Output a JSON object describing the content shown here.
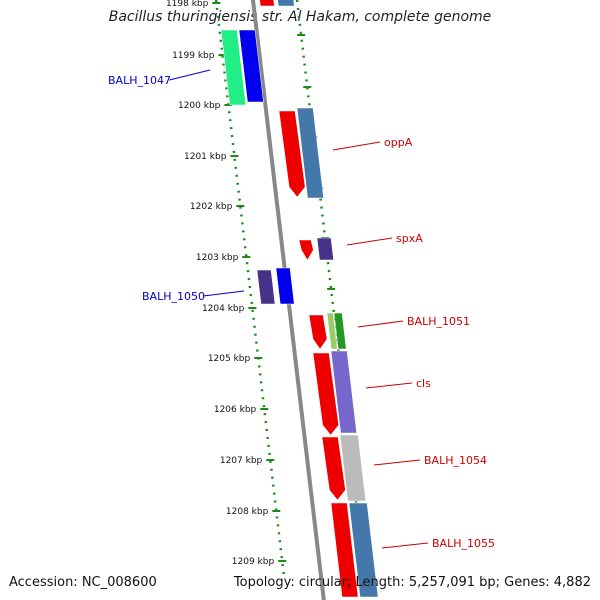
{
  "title": "Bacillus thuringiensis str. Al Hakam, complete genome",
  "footer": {
    "accession": "Accession: NC_008600",
    "stats": "Topology: circular; Length: 5,257,091 bp; Genes: 4,882"
  },
  "ruler": {
    "ticks": [
      "1198 kbp",
      "1199 kbp",
      "1200 kbp",
      "1201 kbp",
      "1202 kbp",
      "1203 kbp",
      "1204 kbp",
      "1205 kbp",
      "1206 kbp",
      "1207 kbp",
      "1208 kbp",
      "1209 kbp"
    ]
  },
  "colors": {
    "backbone": "#888888",
    "ruler_dots": "#1a8a1a",
    "forward_label": "#cc0000",
    "reverse_label": "#0000cc"
  },
  "genes": [
    {
      "label": "BALH_1047",
      "strand": "reverse",
      "label_color": "#0000cc",
      "colors": [
        "#22ee88",
        "#0000ee"
      ]
    },
    {
      "label": "oppA",
      "strand": "forward",
      "label_color": "#cc0000",
      "colors": [
        "#ee0000",
        "#4477aa"
      ]
    },
    {
      "label": "spxA",
      "strand": "forward",
      "label_color": "#cc0000",
      "colors": [
        "#ee0000",
        "#443388"
      ]
    },
    {
      "label": "BALH_1050",
      "strand": "reverse",
      "label_color": "#0000cc",
      "colors": [
        "#443388",
        "#0000ee"
      ]
    },
    {
      "label": "BALH_1051",
      "strand": "forward",
      "label_color": "#cc0000",
      "colors": [
        "#ee0000",
        "#99cc66",
        "#229922"
      ]
    },
    {
      "label": "cls",
      "strand": "forward",
      "label_color": "#cc0000",
      "colors": [
        "#ee0000",
        "#7766cc"
      ]
    },
    {
      "label": "BALH_1054",
      "strand": "forward",
      "label_color": "#cc0000",
      "colors": [
        "#ee0000",
        "#bbbbbb"
      ]
    },
    {
      "label": "BALH_1055",
      "strand": "forward",
      "label_color": "#cc0000",
      "colors": [
        "#ee0000",
        "#4477aa"
      ]
    }
  ]
}
